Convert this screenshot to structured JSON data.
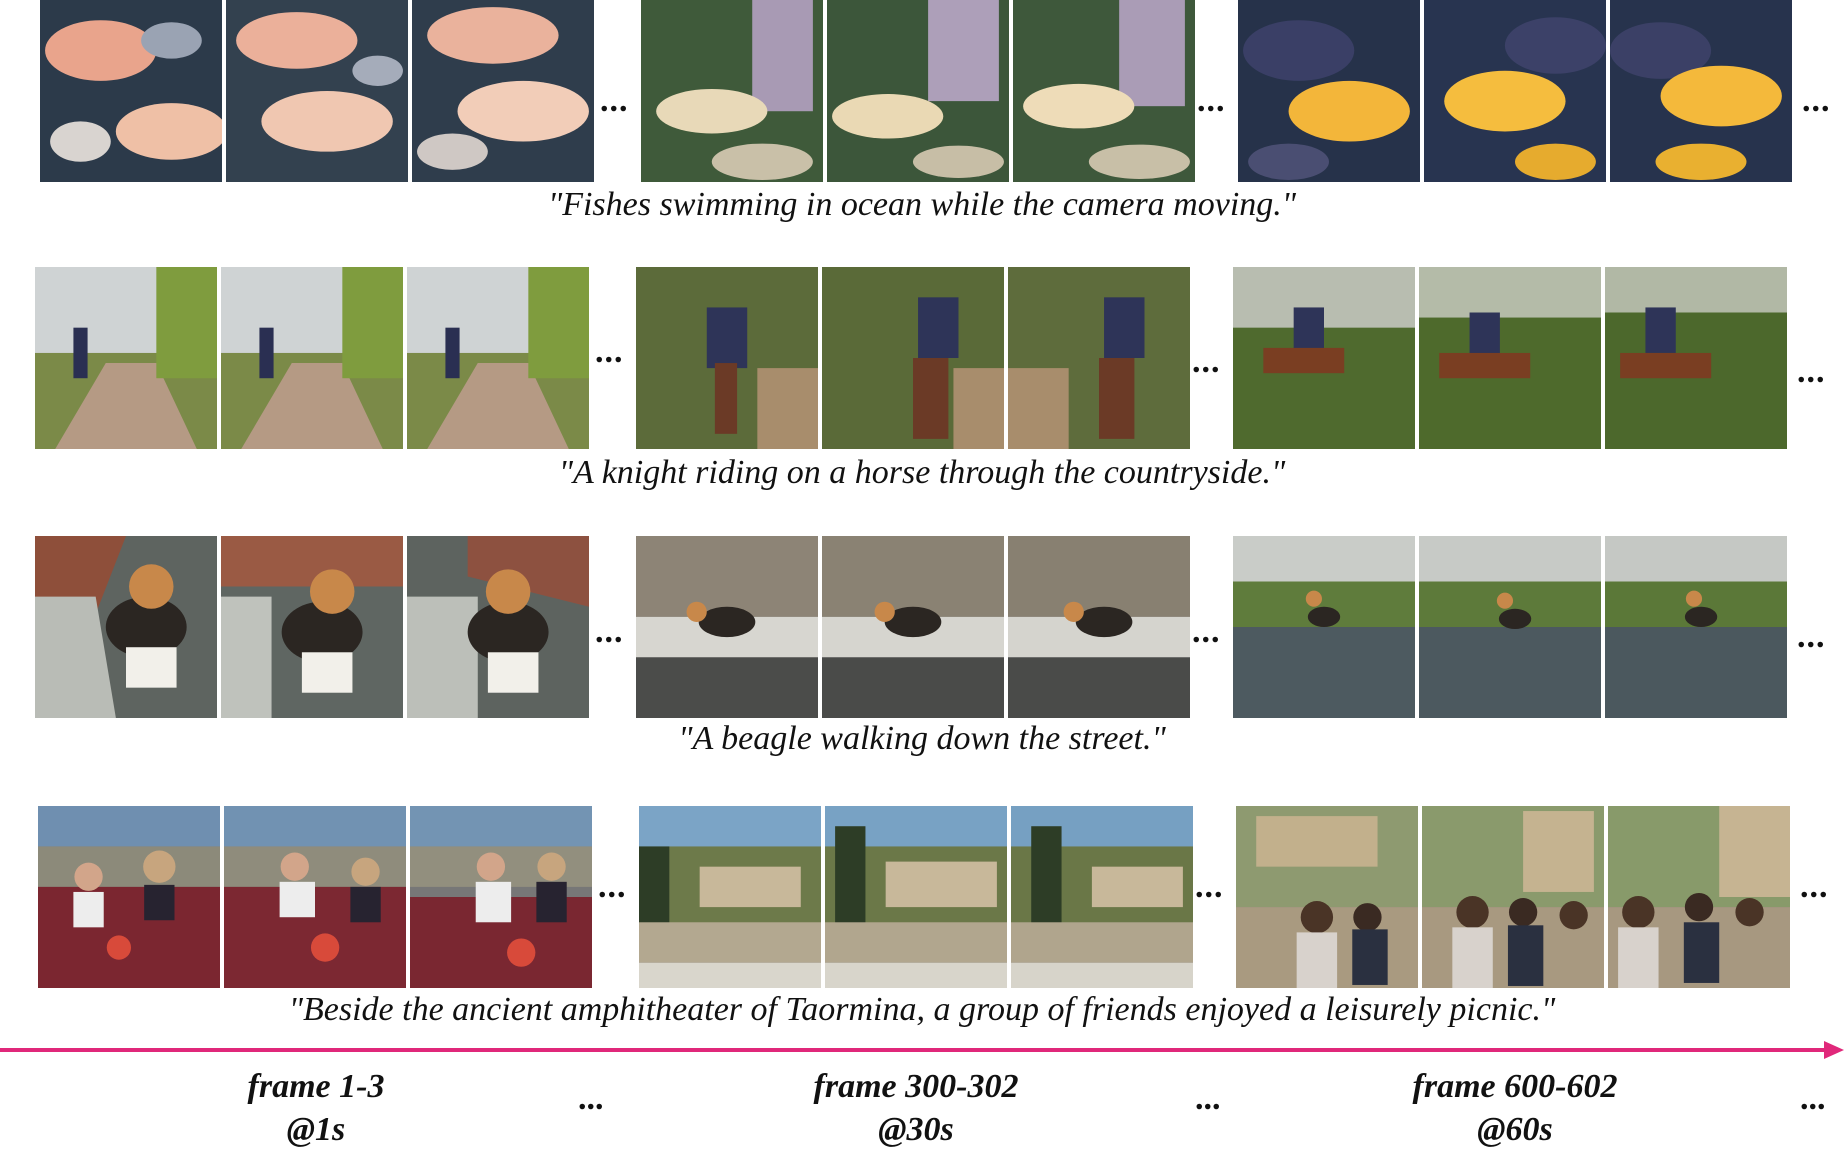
{
  "rows": [
    {
      "caption": "\"Fishes swimming in ocean while the camera moving.\"",
      "scene": "fish"
    },
    {
      "caption": "\"A knight riding on a horse through the countryside.\"",
      "scene": "knight"
    },
    {
      "caption": "\"A beagle walking down the street.\"",
      "scene": "beagle"
    },
    {
      "caption": "\"Beside the ancient amphitheater of Taormina, a group of friends enjoyed a leisurely picnic.\"",
      "scene": "picnic"
    }
  ],
  "ellipsis": "...",
  "timeline": {
    "arrow_color": "#e0287a",
    "labels": [
      {
        "frames": "frame 1-3",
        "time": "@1s"
      },
      {
        "frames": "frame 300-302",
        "time": "@30s"
      },
      {
        "frames": "frame 600-602",
        "time": "@60s"
      }
    ]
  }
}
